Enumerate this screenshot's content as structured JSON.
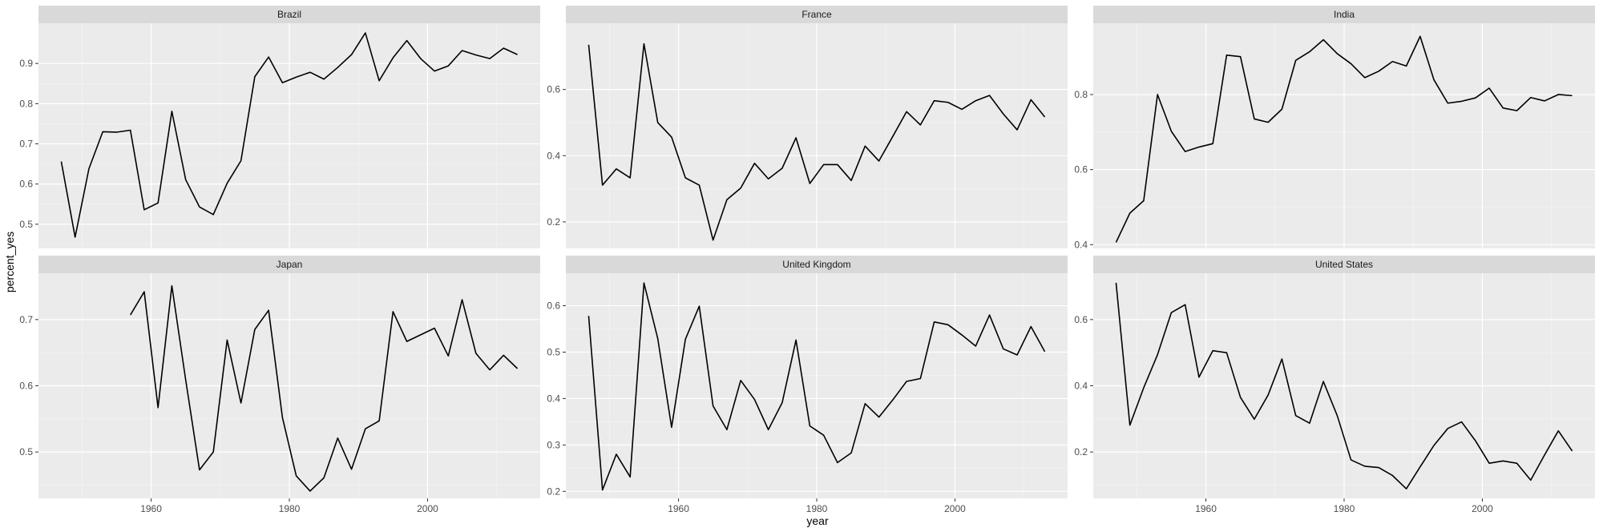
{
  "chart_data": {
    "type": "line",
    "xlabel": "year",
    "ylabel": "percent_yes",
    "x": [
      1947,
      1949,
      1951,
      1953,
      1955,
      1957,
      1959,
      1961,
      1963,
      1965,
      1967,
      1969,
      1971,
      1973,
      1975,
      1977,
      1979,
      1981,
      1983,
      1985,
      1987,
      1989,
      1991,
      1993,
      1995,
      1997,
      1999,
      2001,
      2003,
      2005,
      2007,
      2009,
      2011,
      2013
    ],
    "x_ticks": [
      1960,
      1980,
      2000
    ],
    "panels": [
      {
        "title": "Brazil",
        "y_ticks": [
          0.5,
          0.6,
          0.7,
          0.8,
          0.9
        ],
        "ylim": [
          0.44,
          1.0
        ],
        "values": [
          0.656,
          0.468,
          0.638,
          0.73,
          0.729,
          0.734,
          0.536,
          0.553,
          0.781,
          0.611,
          0.543,
          0.524,
          0.602,
          0.658,
          0.867,
          0.916,
          0.852,
          0.866,
          0.878,
          0.861,
          0.89,
          0.922,
          0.976,
          0.857,
          0.914,
          0.957,
          0.912,
          0.881,
          0.894,
          0.932,
          0.921,
          0.912,
          0.938,
          0.922
        ]
      },
      {
        "title": "France",
        "y_ticks": [
          0.2,
          0.4,
          0.6
        ],
        "ylim": [
          0.12,
          0.8
        ],
        "values": [
          0.735,
          0.311,
          0.36,
          0.333,
          0.738,
          0.5,
          0.456,
          0.333,
          0.311,
          0.145,
          0.267,
          0.302,
          0.377,
          0.33,
          0.362,
          0.454,
          0.316,
          0.373,
          0.373,
          0.325,
          0.429,
          0.384,
          0.458,
          0.533,
          0.493,
          0.566,
          0.561,
          0.54,
          0.566,
          0.582,
          0.526,
          0.478,
          0.569,
          0.517
        ]
      },
      {
        "title": "India",
        "y_ticks": [
          0.4,
          0.6,
          0.8
        ],
        "ylim": [
          0.39,
          0.99
        ],
        "values": [
          0.406,
          0.484,
          0.517,
          0.8,
          0.702,
          0.648,
          0.66,
          0.669,
          0.905,
          0.901,
          0.735,
          0.726,
          0.761,
          0.891,
          0.914,
          0.946,
          0.909,
          0.882,
          0.845,
          0.862,
          0.888,
          0.876,
          0.955,
          0.839,
          0.777,
          0.782,
          0.791,
          0.817,
          0.764,
          0.757,
          0.792,
          0.783,
          0.8,
          0.797
        ]
      },
      {
        "title": "Japan",
        "y_ticks": [
          0.5,
          0.6,
          0.7
        ],
        "ylim": [
          0.43,
          0.77
        ],
        "values": [
          null,
          null,
          null,
          null,
          null,
          0.707,
          0.742,
          0.567,
          0.751,
          0.609,
          0.473,
          0.5,
          0.669,
          0.574,
          0.685,
          0.714,
          0.552,
          0.464,
          0.441,
          0.461,
          0.521,
          0.474,
          0.535,
          0.547,
          0.712,
          0.667,
          0.677,
          0.687,
          0.645,
          0.73,
          0.649,
          0.624,
          0.646,
          0.626
        ]
      },
      {
        "title": "United Kingdom",
        "y_ticks": [
          0.2,
          0.3,
          0.4,
          0.5,
          0.6
        ],
        "ylim": [
          0.185,
          0.67
        ],
        "values": [
          0.578,
          0.203,
          0.28,
          0.231,
          0.649,
          0.529,
          0.338,
          0.528,
          0.599,
          0.384,
          0.333,
          0.439,
          0.398,
          0.333,
          0.391,
          0.526,
          0.341,
          0.321,
          0.262,
          0.283,
          0.389,
          0.36,
          0.397,
          0.437,
          0.443,
          0.565,
          0.559,
          0.537,
          0.513,
          0.58,
          0.507,
          0.494,
          0.555,
          0.501
        ]
      },
      {
        "title": "United States",
        "y_ticks": [
          0.2,
          0.4,
          0.6
        ],
        "ylim": [
          0.06,
          0.74
        ],
        "values": [
          0.711,
          0.281,
          0.394,
          0.494,
          0.621,
          0.645,
          0.426,
          0.506,
          0.5,
          0.365,
          0.299,
          0.372,
          0.481,
          0.31,
          0.287,
          0.413,
          0.31,
          0.176,
          0.157,
          0.153,
          0.129,
          0.089,
          0.155,
          0.22,
          0.271,
          0.291,
          0.234,
          0.166,
          0.173,
          0.166,
          0.115,
          0.191,
          0.264,
          0.203
        ]
      }
    ]
  }
}
